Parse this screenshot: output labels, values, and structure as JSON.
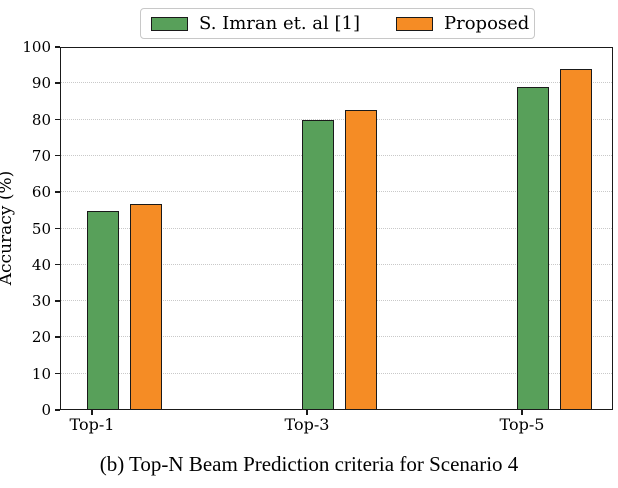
{
  "caption": {
    "text": "(b) Top-N Beam Prediction criteria for Scenario 4"
  },
  "chart_data": {
    "type": "bar",
    "title": "",
    "categories": [
      "Top-1",
      "Top-3",
      "Top-5"
    ],
    "series": [
      {
        "name": "S. Imran et. al [1]",
        "color": "#58a05a",
        "values": [
          54.6,
          79.5,
          88.7
        ]
      },
      {
        "name": "Proposed",
        "color": "#f58c25",
        "values": [
          56.5,
          82.3,
          93.7
        ]
      }
    ],
    "xlabel": "",
    "ylabel": "Accuracy (%)",
    "ylim": [
      0,
      100
    ],
    "yticks": [
      0,
      10,
      20,
      30,
      40,
      50,
      60,
      70,
      80,
      90,
      100
    ],
    "grid": "horizontal-dotted",
    "legend_position": "top-center",
    "bar_edge_color": "#1a1a1a"
  }
}
